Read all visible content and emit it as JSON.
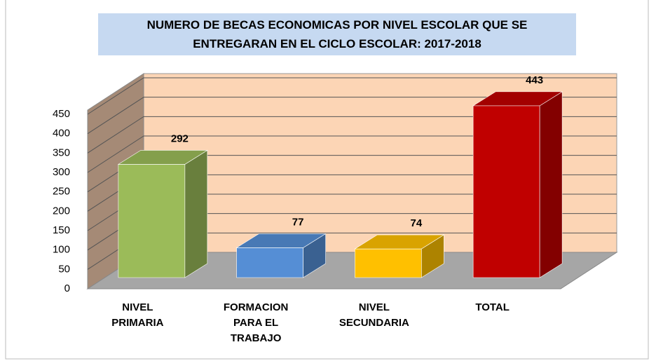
{
  "chart_data": {
    "type": "bar3d",
    "title": "NUMERO DE BECAS ECONOMICAS POR NIVEL ESCOLAR QUE SE ENTREGARAN EN EL CICLO ESCOLAR: 2017-2018",
    "categories": [
      "NIVEL PRIMARIA",
      "FORMACION PARA EL TRABAJO",
      "NIVEL SECUNDARIA",
      "TOTAL"
    ],
    "values": [
      292,
      77,
      74,
      443
    ],
    "colors": [
      "#9bbb59",
      "#558ed5",
      "#ffc000",
      "#c00000"
    ],
    "ylim": [
      0,
      450
    ],
    "yticks": [
      0,
      50,
      100,
      150,
      200,
      250,
      300,
      350,
      400,
      450
    ],
    "grid": true
  }
}
